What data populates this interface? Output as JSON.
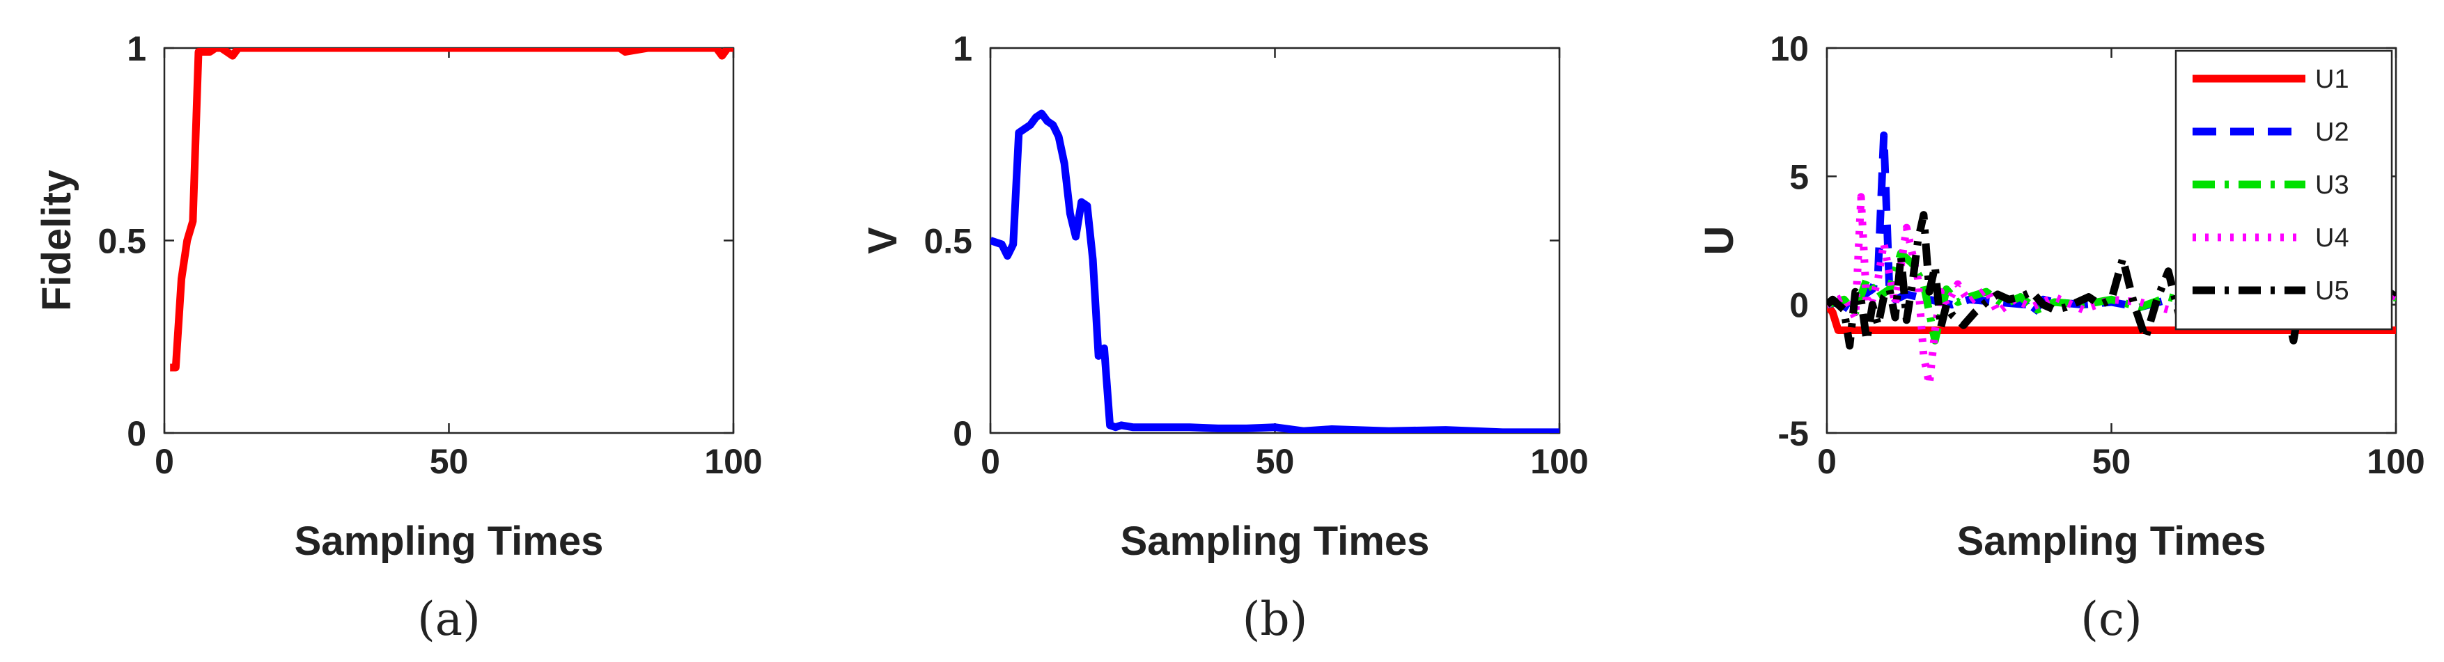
{
  "chart_data": [
    {
      "type": "line",
      "caption": "(a)",
      "xlabel": "Sampling Times",
      "ylabel": "Fidelity",
      "xlim": [
        0,
        100
      ],
      "ylim": [
        0,
        1
      ],
      "xticks": [
        "0",
        "50",
        "100"
      ],
      "yticks": [
        "0",
        "0.5",
        "1"
      ],
      "grid": false,
      "series": [
        {
          "color": "#ff0000",
          "x": [
            1,
            2,
            3,
            4,
            5,
            6,
            7,
            8,
            9,
            10,
            11,
            12,
            13,
            15,
            20,
            30,
            40,
            50,
            60,
            70,
            80,
            81,
            85,
            90,
            95,
            97,
            98,
            99,
            100
          ],
          "y": [
            0.17,
            0.17,
            0.4,
            0.5,
            0.55,
            0.99,
            0.99,
            0.99,
            1.0,
            1.0,
            0.99,
            0.98,
            1.0,
            1.0,
            1.0,
            1.0,
            1.0,
            1.0,
            1.0,
            1.0,
            1.0,
            0.99,
            1.0,
            1.0,
            1.0,
            1.0,
            0.98,
            1.0,
            1.0
          ]
        }
      ]
    },
    {
      "type": "line",
      "caption": "(b)",
      "xlabel": "Sampling Times",
      "ylabel": "V",
      "xlim": [
        0,
        100
      ],
      "ylim": [
        0,
        1
      ],
      "xticks": [
        "0",
        "50",
        "100"
      ],
      "yticks": [
        "0",
        "0.5",
        "1"
      ],
      "grid": false,
      "series": [
        {
          "color": "#0000ff",
          "x": [
            0,
            2,
            3,
            4,
            5,
            6,
            7,
            8,
            9,
            10,
            11,
            12,
            13,
            14,
            15,
            16,
            17,
            18,
            19,
            20,
            21,
            22,
            23,
            25,
            30,
            35,
            40,
            45,
            50,
            55,
            60,
            70,
            80,
            90,
            100
          ],
          "y": [
            0.5,
            0.49,
            0.46,
            0.49,
            0.78,
            0.79,
            0.8,
            0.82,
            0.83,
            0.81,
            0.8,
            0.77,
            0.7,
            0.57,
            0.51,
            0.6,
            0.59,
            0.45,
            0.2,
            0.22,
            0.02,
            0.015,
            0.02,
            0.015,
            0.015,
            0.015,
            0.012,
            0.012,
            0.015,
            0.005,
            0.01,
            0.005,
            0.008,
            0.002,
            0.002
          ]
        }
      ]
    },
    {
      "type": "line",
      "caption": "(c)",
      "xlabel": "Sampling Times",
      "ylabel": "U",
      "xlim": [
        0,
        100
      ],
      "ylim": [
        -5,
        10
      ],
      "xticks": [
        "0",
        "50",
        "100"
      ],
      "yticks": [
        "-5",
        "0",
        "5",
        "10"
      ],
      "grid": false,
      "legend_position": "top-right",
      "series": [
        {
          "name": "U1",
          "color": "#ff0000",
          "style": "solid",
          "x": [
            0,
            1,
            2,
            100
          ],
          "y": [
            0,
            -0.3,
            -1,
            -1
          ]
        },
        {
          "name": "U2",
          "color": "#0000ff",
          "style": "dashed",
          "x": [
            0,
            2,
            4,
            6,
            8,
            9,
            10,
            11,
            12,
            14,
            16,
            18,
            20,
            22,
            25,
            30,
            35,
            36,
            38,
            40,
            45,
            50,
            55,
            60,
            65,
            70,
            75,
            80,
            85,
            90,
            95,
            100
          ],
          "y": [
            0,
            0.1,
            -0.2,
            0.3,
            0.6,
            1.3,
            6.6,
            0.5,
            0.2,
            0.4,
            0.3,
            0.2,
            0.1,
            0.0,
            0.2,
            0.1,
            0.0,
            -0.4,
            0.2,
            0.1,
            0.0,
            0.1,
            -0.1,
            0.2,
            0.0,
            0.1,
            -0.1,
            0.0,
            0.1,
            0.0,
            0.1,
            0.0
          ]
        },
        {
          "name": "U3",
          "color": "#00e000",
          "style": "dashdot",
          "x": [
            0,
            3,
            5,
            7,
            9,
            11,
            13,
            15,
            17,
            19,
            21,
            23,
            25,
            28,
            31,
            34,
            37,
            40,
            45,
            50,
            55,
            60,
            65,
            70,
            75,
            80,
            85,
            90,
            95,
            100
          ],
          "y": [
            0,
            0.2,
            -0.3,
            1.0,
            0.3,
            0.6,
            2.0,
            1.6,
            0.8,
            -1.4,
            0.6,
            0.1,
            0.3,
            0.5,
            0.0,
            0.3,
            -0.2,
            0.1,
            0.0,
            0.2,
            -0.1,
            0.3,
            0.0,
            0.1,
            -0.1,
            0.3,
            0.0,
            0.2,
            0.0,
            0.3
          ]
        },
        {
          "name": "U4",
          "color": "#ff00ff",
          "style": "dotted",
          "x": [
            0,
            3,
            5,
            6,
            7,
            8,
            9,
            10,
            12,
            14,
            16,
            17,
            18,
            19,
            20,
            21,
            23,
            25,
            28,
            30,
            33,
            36,
            40,
            45,
            50,
            55,
            60,
            65,
            70,
            75,
            80,
            85,
            90,
            95,
            98,
            100
          ],
          "y": [
            0,
            0.3,
            -0.5,
            4.2,
            0.0,
            0.2,
            1.0,
            2.4,
            0.0,
            3.0,
            1.0,
            -2.0,
            -3.1,
            -1.0,
            0.5,
            0.0,
            0.8,
            0.1,
            0.6,
            -0.3,
            0.2,
            -0.1,
            0.3,
            -0.2,
            0.2,
            0.1,
            -0.2,
            0.2,
            0.0,
            -0.2,
            0.3,
            0.1,
            -0.1,
            0.2,
            0.5,
            0.3
          ]
        },
        {
          "name": "U5",
          "color": "#000000",
          "style": "dashdot",
          "x": [
            0,
            1,
            2,
            3,
            4,
            5,
            6,
            7,
            8,
            9,
            10,
            11,
            12,
            13,
            14,
            15,
            16,
            17,
            18,
            19,
            20,
            21,
            22,
            24,
            26,
            28,
            30,
            32,
            34,
            36,
            38,
            40,
            42,
            44,
            46,
            48,
            50,
            52,
            54,
            56,
            58,
            60,
            62,
            64,
            66,
            68,
            70,
            72,
            74,
            76,
            78,
            80,
            82,
            84,
            86,
            88,
            90,
            92,
            94,
            96,
            98,
            100
          ],
          "y": [
            0,
            0.2,
            0.0,
            -0.2,
            -1.6,
            0.5,
            0.2,
            -1.4,
            0.0,
            -0.8,
            0.3,
            0.6,
            -0.5,
            1.9,
            -0.6,
            0.8,
            2.5,
            3.5,
            0.5,
            1.5,
            -0.9,
            0.0,
            -0.4,
            -0.8,
            -0.3,
            0.1,
            0.4,
            0.2,
            0.3,
            0.5,
            0.0,
            -0.2,
            -0.1,
            0.1,
            0.3,
            0.0,
            0.2,
            1.8,
            0.0,
            -1.3,
            0.2,
            1.3,
            -0.5,
            0.8,
            -0.2,
            0.6,
            -0.4,
            0.2,
            -0.6,
            1.0,
            -0.4,
            0.6,
            -1.4,
            1.2,
            -0.3,
            0.8,
            -0.2,
            0.4,
            -0.8,
            0.9,
            0.0,
            0.6
          ]
        }
      ]
    }
  ]
}
